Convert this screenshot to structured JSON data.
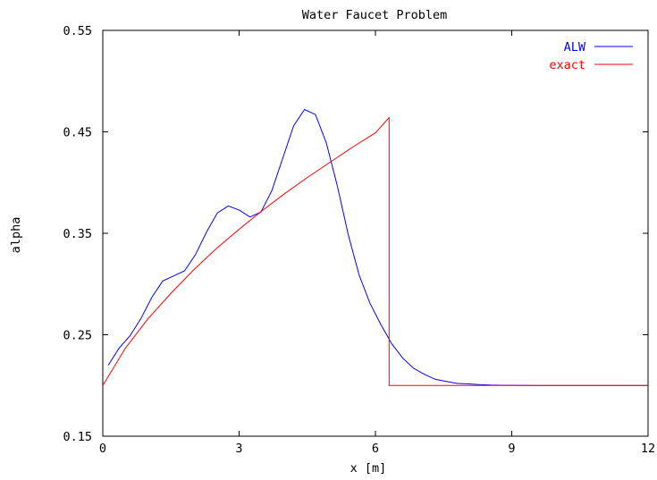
{
  "chart_data": {
    "type": "line",
    "title": "Water Faucet Problem",
    "xlabel": "x [m]",
    "ylabel": "alpha",
    "xlim": [
      0,
      12
    ],
    "ylim": [
      0.15,
      0.55
    ],
    "xticks": [
      0,
      3,
      6,
      9,
      12
    ],
    "yticks": [
      0.15,
      0.25,
      0.35,
      0.45,
      0.55
    ],
    "xtick_labels": [
      "0",
      "3",
      "6",
      "9",
      "12"
    ],
    "ytick_labels": [
      "0.15",
      "0.25",
      "0.35",
      "0.45",
      "0.55"
    ],
    "grid": false,
    "legend_position": "top-right",
    "series": [
      {
        "name": "ALW",
        "color": "#0000ff",
        "x": [
          0.12,
          0.36,
          0.6,
          0.84,
          1.08,
          1.32,
          1.56,
          1.8,
          2.04,
          2.28,
          2.52,
          2.76,
          3.0,
          3.24,
          3.48,
          3.72,
          3.96,
          4.2,
          4.44,
          4.68,
          4.92,
          5.16,
          5.4,
          5.64,
          5.88,
          6.12,
          6.36,
          6.6,
          6.84,
          7.08,
          7.32,
          7.56,
          7.8,
          8.04,
          8.28,
          8.52,
          8.76,
          9.0,
          9.5,
          10.0,
          10.5,
          11.0,
          11.5,
          12.0
        ],
        "y": [
          0.22,
          0.237,
          0.249,
          0.266,
          0.287,
          0.303,
          0.308,
          0.313,
          0.329,
          0.351,
          0.37,
          0.377,
          0.373,
          0.366,
          0.371,
          0.392,
          0.424,
          0.456,
          0.472,
          0.467,
          0.439,
          0.397,
          0.349,
          0.309,
          0.281,
          0.26,
          0.241,
          0.227,
          0.217,
          0.211,
          0.206,
          0.204,
          0.202,
          0.2015,
          0.2008,
          0.2004,
          0.2002,
          0.2001,
          0.2,
          0.2,
          0.2,
          0.2,
          0.2,
          0.2
        ]
      },
      {
        "name": "exact",
        "color": "#ff0000",
        "x": [
          0,
          0.5,
          1.0,
          1.5,
          2.0,
          2.5,
          3.0,
          3.5,
          4.0,
          4.5,
          5.0,
          5.5,
          6.0,
          6.3,
          6.3,
          12.0
        ],
        "y": [
          0.2,
          0.237,
          0.266,
          0.291,
          0.314,
          0.335,
          0.354,
          0.372,
          0.389,
          0.405,
          0.42,
          0.435,
          0.449,
          0.464,
          0.2,
          0.2
        ]
      }
    ]
  }
}
